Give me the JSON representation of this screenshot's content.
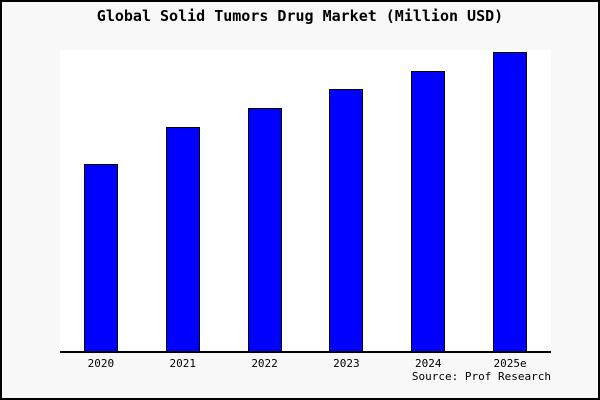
{
  "chart_data": {
    "type": "bar",
    "title": "Global Solid Tumors Drug Market (Million USD)",
    "categories": [
      "2020",
      "2021",
      "2022",
      "2023",
      "2024",
      "2025e"
    ],
    "values": [
      62.5,
      74.9,
      81.2,
      87.5,
      93.7,
      100
    ],
    "value_note": "no y-axis shown; values estimated relative to 2025e = 100",
    "ylim": [
      0,
      100.6
    ],
    "xlabel": "",
    "ylabel": "",
    "grid": false,
    "legend": false,
    "source_note": "Source: Prof Research",
    "bar_color": "#0000ff",
    "bar_border_color": "#000000",
    "background_color": "#f8f8f8",
    "plot_background_color": "#ffffff"
  }
}
